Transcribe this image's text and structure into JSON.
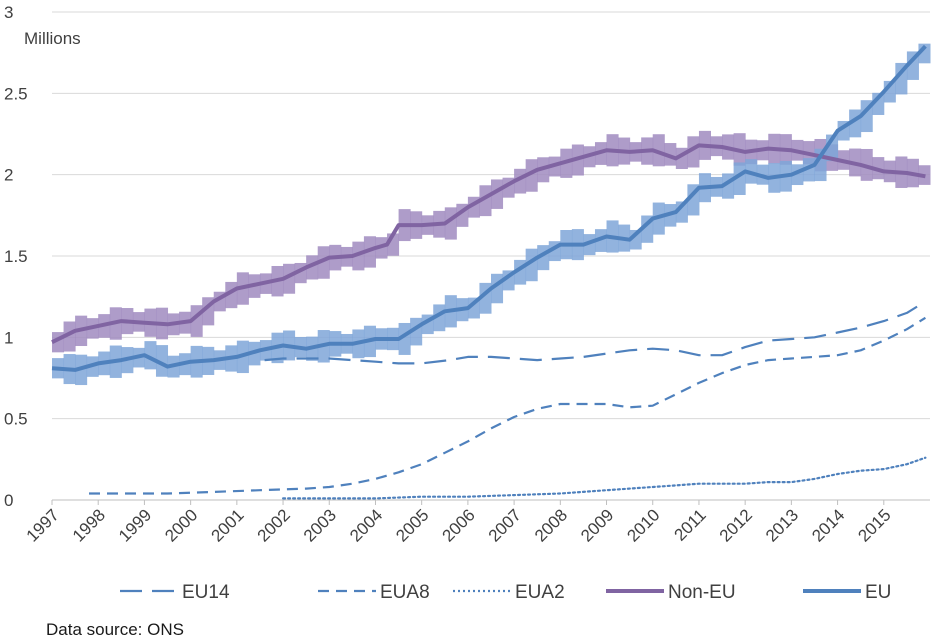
{
  "chart_data": {
    "type": "line",
    "unit_label": "Millions",
    "ylim": [
      0,
      3
    ],
    "y_ticks": [
      {
        "value": 0,
        "label": "0"
      },
      {
        "value": 0.5,
        "label": "0.5"
      },
      {
        "value": 1,
        "label": "1"
      },
      {
        "value": 1.5,
        "label": "1.5"
      },
      {
        "value": 2,
        "label": "2"
      },
      {
        "value": 2.5,
        "label": "2.5"
      },
      {
        "value": 3,
        "label": "3"
      }
    ],
    "xlim": [
      1997,
      2016
    ],
    "x_ticks": [
      "1997",
      "1998",
      "1999",
      "2000",
      "2001",
      "2002",
      "2003",
      "2004",
      "2005",
      "2006",
      "2007",
      "2008",
      "2009",
      "2010",
      "2011",
      "2012",
      "2013",
      "2014",
      "2015"
    ],
    "grid": "horizontal",
    "legend_position": "bottom",
    "source": "Data source: ONS",
    "colors": {
      "non_eu": "#8064a2",
      "non_eu_band": "#a08bc0",
      "eu": "#4f81bd",
      "eu_band": "#7fa6d8",
      "grid": "#d9d9d9",
      "axis": "#bfbfbf"
    },
    "series": [
      {
        "name": "EU14",
        "style": "long-dash",
        "color": "#4f81bd",
        "x": [
          2001.6,
          2002.0,
          2003.0,
          2004.0,
          2004.5,
          2005.0,
          2005.6,
          2006.0,
          2006.5,
          2007.0,
          2007.5,
          2008.0,
          2008.5,
          2009.0,
          2009.5,
          2010.0,
          2010.5,
          2011.0,
          2011.5,
          2012.0,
          2012.5,
          2013.0,
          2013.5,
          2014.0,
          2014.5,
          2015.0,
          2015.5,
          2015.9
        ],
        "y": [
          0.86,
          0.87,
          0.87,
          0.85,
          0.84,
          0.84,
          0.86,
          0.88,
          0.88,
          0.87,
          0.86,
          0.87,
          0.88,
          0.9,
          0.92,
          0.93,
          0.92,
          0.89,
          0.89,
          0.94,
          0.98,
          0.99,
          1.0,
          1.03,
          1.06,
          1.1,
          1.15,
          1.22
        ]
      },
      {
        "name": "EUA8",
        "style": "dash",
        "color": "#4f81bd",
        "x": [
          1997.8,
          1998.5,
          1999.5,
          2000.5,
          2001.5,
          2002.5,
          2003.0,
          2003.5,
          2004.0,
          2004.5,
          2005.0,
          2005.5,
          2006.0,
          2006.5,
          2007.0,
          2007.5,
          2008.0,
          2008.5,
          2009.0,
          2009.5,
          2010.0,
          2010.5,
          2011.0,
          2011.5,
          2012.0,
          2012.5,
          2013.0,
          2013.5,
          2014.0,
          2014.5,
          2015.0,
          2015.5,
          2015.9
        ],
        "y": [
          0.04,
          0.04,
          0.04,
          0.05,
          0.06,
          0.07,
          0.08,
          0.1,
          0.13,
          0.17,
          0.22,
          0.29,
          0.36,
          0.44,
          0.51,
          0.56,
          0.59,
          0.59,
          0.59,
          0.57,
          0.58,
          0.65,
          0.72,
          0.78,
          0.83,
          0.86,
          0.87,
          0.88,
          0.89,
          0.92,
          0.98,
          1.05,
          1.12
        ]
      },
      {
        "name": "EUA2",
        "style": "dot",
        "color": "#4f81bd",
        "x": [
          2002.0,
          2003.0,
          2004.0,
          2005.0,
          2006.0,
          2007.0,
          2008.0,
          2009.0,
          2010.0,
          2010.5,
          2011.0,
          2011.5,
          2012.0,
          2012.5,
          2013.0,
          2013.5,
          2014.0,
          2014.5,
          2015.0,
          2015.5,
          2015.9
        ],
        "y": [
          0.01,
          0.01,
          0.01,
          0.02,
          0.02,
          0.03,
          0.04,
          0.06,
          0.08,
          0.09,
          0.1,
          0.1,
          0.1,
          0.11,
          0.11,
          0.13,
          0.16,
          0.18,
          0.19,
          0.22,
          0.26
        ]
      },
      {
        "name": "Non-EU",
        "style": "solid-thick",
        "color": "#8064a2",
        "band_halfwidth": 0.08,
        "x": [
          1997.0,
          1997.5,
          1998.0,
          1998.5,
          1999.0,
          1999.5,
          2000.0,
          2000.5,
          2001.0,
          2001.5,
          2002.0,
          2002.5,
          2003.0,
          2003.5,
          2004.0,
          2004.25,
          2004.5,
          2005.0,
          2005.5,
          2006.0,
          2006.5,
          2007.0,
          2007.5,
          2008.0,
          2008.5,
          2009.0,
          2009.5,
          2010.0,
          2010.5,
          2011.0,
          2011.5,
          2012.0,
          2012.5,
          2013.0,
          2013.5,
          2014.0,
          2014.5,
          2015.0,
          2015.5,
          2015.9
        ],
        "y": [
          0.97,
          1.04,
          1.07,
          1.1,
          1.09,
          1.08,
          1.1,
          1.22,
          1.3,
          1.33,
          1.36,
          1.43,
          1.49,
          1.5,
          1.55,
          1.57,
          1.69,
          1.69,
          1.7,
          1.8,
          1.88,
          1.96,
          2.03,
          2.07,
          2.11,
          2.15,
          2.14,
          2.15,
          2.1,
          2.18,
          2.17,
          2.14,
          2.16,
          2.15,
          2.12,
          2.09,
          2.06,
          2.02,
          2.01,
          1.99
        ]
      },
      {
        "name": "EU",
        "style": "solid-thick",
        "color": "#4f81bd",
        "band_halfwidth": 0.08,
        "x": [
          1997.0,
          1997.5,
          1998.0,
          1998.5,
          1999.0,
          1999.5,
          2000.0,
          2000.5,
          2001.0,
          2001.5,
          2002.0,
          2002.5,
          2003.0,
          2003.5,
          2004.0,
          2004.5,
          2005.0,
          2005.5,
          2006.0,
          2006.5,
          2007.0,
          2007.5,
          2008.0,
          2008.5,
          2009.0,
          2009.5,
          2010.0,
          2010.5,
          2011.0,
          2011.5,
          2012.0,
          2012.5,
          2013.0,
          2013.5,
          2014.0,
          2014.5,
          2015.0,
          2015.5,
          2015.9
        ],
        "y": [
          0.81,
          0.8,
          0.84,
          0.86,
          0.89,
          0.82,
          0.85,
          0.86,
          0.88,
          0.92,
          0.95,
          0.93,
          0.96,
          0.96,
          0.99,
          0.99,
          1.08,
          1.16,
          1.18,
          1.3,
          1.4,
          1.49,
          1.57,
          1.57,
          1.62,
          1.6,
          1.73,
          1.77,
          1.92,
          1.93,
          2.02,
          1.98,
          2.0,
          2.06,
          2.27,
          2.36,
          2.51,
          2.67,
          2.79
        ]
      }
    ],
    "legend": [
      {
        "name": "EU14",
        "style": "long-dash"
      },
      {
        "name": "EUA8",
        "style": "dash"
      },
      {
        "name": "EUA2",
        "style": "dot"
      },
      {
        "name": "Non-EU",
        "style": "solid-thick-purple"
      },
      {
        "name": "EU",
        "style": "solid-thick-blue"
      }
    ]
  }
}
